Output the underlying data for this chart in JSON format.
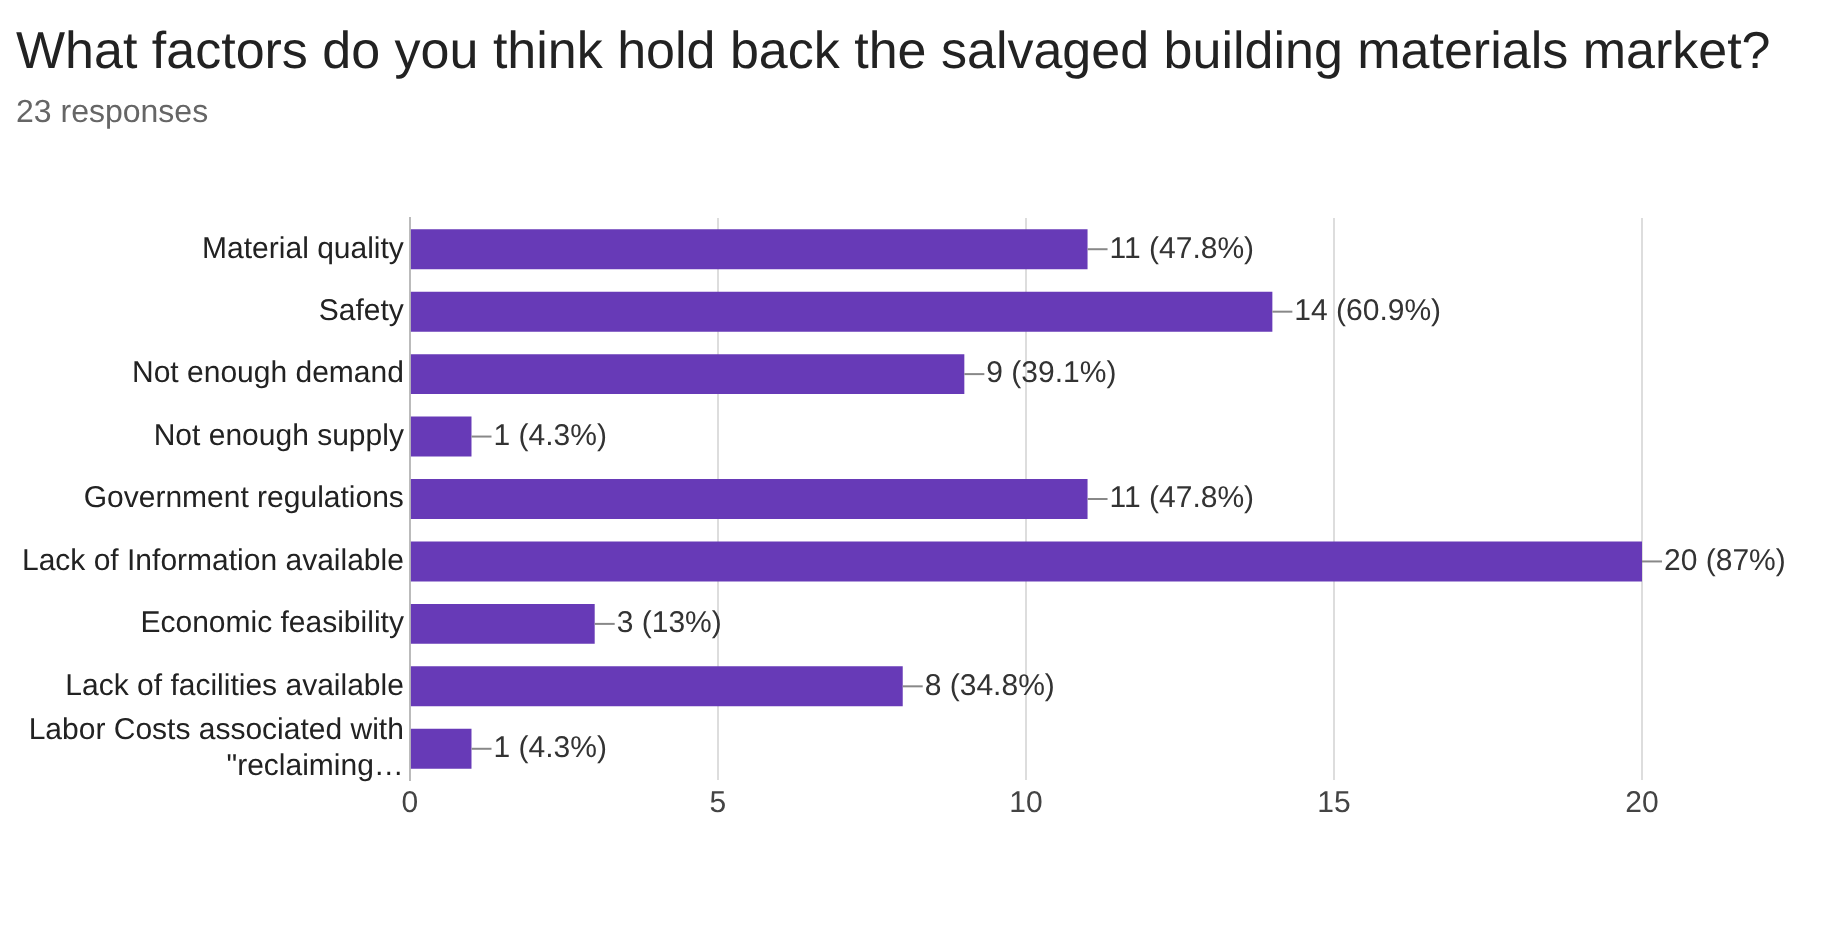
{
  "chart_data": {
    "type": "bar",
    "orientation": "horizontal",
    "title": "What factors  do you think hold back the salvaged building materials market?",
    "subtitle": "23 responses",
    "categories": [
      "Material quality",
      "Safety",
      "Not enough demand",
      "Not enough supply",
      "Government regulations",
      "Lack of Information available",
      "Economic feasibility",
      "Lack of facilities available",
      "Labor Costs associated with \"reclaiming…"
    ],
    "values": [
      11,
      14,
      9,
      1,
      11,
      20,
      3,
      8,
      1
    ],
    "value_labels": [
      "11 (47.8%)",
      "14 (60.9%)",
      "9 (39.1%)",
      "1 (4.3%)",
      "11 (47.8%)",
      "20 (87%)",
      "3 (13%)",
      "8 (34.8%)",
      "1 (4.3%)"
    ],
    "color": "#673ab7",
    "xlim": [
      0,
      20
    ],
    "xticks": [
      0,
      5,
      10,
      15,
      20
    ],
    "grid": "x",
    "legend": false
  }
}
